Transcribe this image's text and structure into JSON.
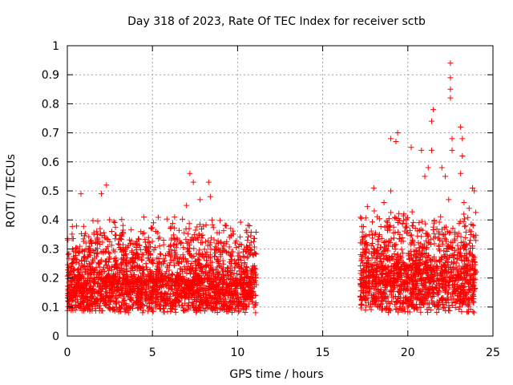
{
  "chart_data": {
    "type": "scatter",
    "title": "Day 318 of 2023, Rate Of TEC Index for receiver sctb",
    "xlabel": "GPS time / hours",
    "ylabel": "ROTI / TECUs",
    "xlim": [
      0,
      25
    ],
    "ylim": [
      0,
      1
    ],
    "xticks": [
      0,
      5,
      10,
      15,
      20,
      25
    ],
    "yticks": [
      0,
      0.1,
      0.2,
      0.3,
      0.4,
      0.5,
      0.6,
      0.7,
      0.8,
      0.9,
      1
    ],
    "xtick_labels": [
      "0",
      "5",
      "10",
      "15",
      "20",
      "25"
    ],
    "ytick_labels": [
      "0",
      "0.1",
      "0.2",
      "0.3",
      "0.4",
      "0.5",
      "0.6",
      "0.7",
      "0.8",
      "0.9",
      "1"
    ],
    "grid": true,
    "marker": "+",
    "marker_color": "#ff0000",
    "series": [
      {
        "segments": [
          {
            "x_start": 0.0,
            "x_end": 11.1,
            "baseline": 0.14,
            "spread": 0.12
          },
          {
            "x_start": 17.2,
            "x_end": 24.0,
            "baseline": 0.16,
            "spread": 0.16
          }
        ],
        "outliers": [
          {
            "x": 0.8,
            "y": 0.49
          },
          {
            "x": 2.0,
            "y": 0.49
          },
          {
            "x": 2.3,
            "y": 0.52
          },
          {
            "x": 4.5,
            "y": 0.41
          },
          {
            "x": 6.3,
            "y": 0.41
          },
          {
            "x": 7.0,
            "y": 0.45
          },
          {
            "x": 7.2,
            "y": 0.56
          },
          {
            "x": 7.4,
            "y": 0.53
          },
          {
            "x": 7.8,
            "y": 0.47
          },
          {
            "x": 8.3,
            "y": 0.53
          },
          {
            "x": 8.4,
            "y": 0.48
          },
          {
            "x": 8.5,
            "y": 0.4
          },
          {
            "x": 10.7,
            "y": 0.38
          },
          {
            "x": 18.0,
            "y": 0.51
          },
          {
            "x": 18.6,
            "y": 0.46
          },
          {
            "x": 19.0,
            "y": 0.5
          },
          {
            "x": 19.0,
            "y": 0.68
          },
          {
            "x": 19.4,
            "y": 0.7
          },
          {
            "x": 19.3,
            "y": 0.67
          },
          {
            "x": 20.2,
            "y": 0.65
          },
          {
            "x": 20.8,
            "y": 0.64
          },
          {
            "x": 21.0,
            "y": 0.55
          },
          {
            "x": 21.2,
            "y": 0.58
          },
          {
            "x": 21.4,
            "y": 0.64
          },
          {
            "x": 21.4,
            "y": 0.74
          },
          {
            "x": 21.5,
            "y": 0.78
          },
          {
            "x": 22.0,
            "y": 0.58
          },
          {
            "x": 22.2,
            "y": 0.55
          },
          {
            "x": 22.4,
            "y": 0.47
          },
          {
            "x": 22.5,
            "y": 0.94
          },
          {
            "x": 22.5,
            "y": 0.89
          },
          {
            "x": 22.5,
            "y": 0.85
          },
          {
            "x": 22.5,
            "y": 0.82
          },
          {
            "x": 22.6,
            "y": 0.68
          },
          {
            "x": 22.6,
            "y": 0.64
          },
          {
            "x": 23.1,
            "y": 0.72
          },
          {
            "x": 23.2,
            "y": 0.68
          },
          {
            "x": 23.2,
            "y": 0.62
          },
          {
            "x": 23.1,
            "y": 0.56
          },
          {
            "x": 23.3,
            "y": 0.46
          },
          {
            "x": 23.8,
            "y": 0.51
          },
          {
            "x": 23.9,
            "y": 0.5
          },
          {
            "x": 23.6,
            "y": 0.44
          }
        ]
      }
    ]
  }
}
